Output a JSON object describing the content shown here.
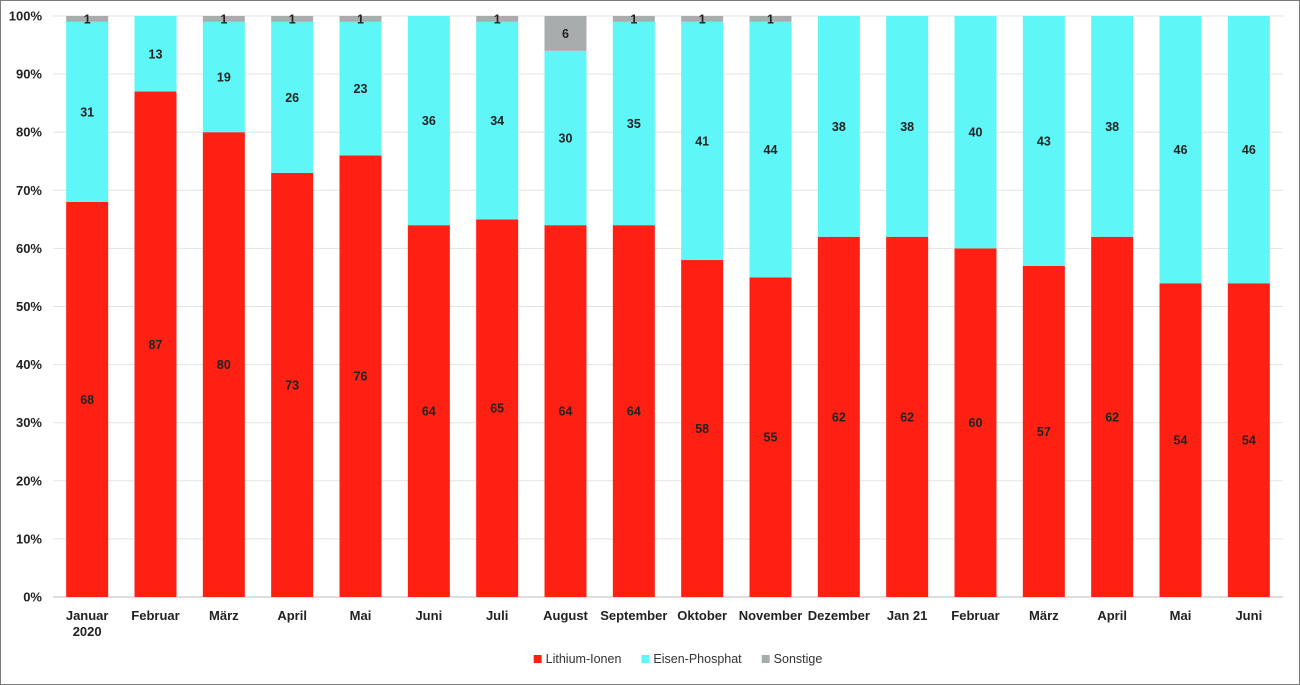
{
  "chart_data": {
    "type": "bar",
    "stacked": true,
    "percent": true,
    "categories": [
      [
        "Januar",
        "2020"
      ],
      [
        "Februar"
      ],
      [
        "März"
      ],
      [
        "April"
      ],
      [
        "Mai"
      ],
      [
        "Juni"
      ],
      [
        "Juli"
      ],
      [
        "August"
      ],
      [
        "September"
      ],
      [
        "Oktober"
      ],
      [
        "November"
      ],
      [
        "Dezember"
      ],
      [
        "Jan 21"
      ],
      [
        "Februar"
      ],
      [
        "März"
      ],
      [
        "April"
      ],
      [
        "Mai"
      ],
      [
        "Juni"
      ]
    ],
    "series": [
      {
        "name": "Lithium-Ionen",
        "color": "#ff2014",
        "values": [
          68,
          87,
          80,
          73,
          76,
          64,
          65,
          64,
          64,
          58,
          55,
          62,
          62,
          60,
          57,
          62,
          54,
          54
        ]
      },
      {
        "name": "Eisen-Phosphat",
        "color": "#5ff6f8",
        "values": [
          31,
          13,
          19,
          26,
          23,
          36,
          34,
          30,
          35,
          41,
          44,
          38,
          38,
          40,
          43,
          38,
          46,
          46
        ]
      },
      {
        "name": "Sonstige",
        "color": "#a9acad",
        "values": [
          1,
          0,
          1,
          1,
          1,
          0,
          1,
          6,
          1,
          1,
          1,
          0,
          0,
          0,
          0,
          0,
          0,
          0
        ]
      }
    ],
    "yticks": [
      "0%",
      "10%",
      "20%",
      "30%",
      "40%",
      "50%",
      "60%",
      "70%",
      "80%",
      "90%",
      "100%"
    ],
    "ylim": [
      0,
      100
    ],
    "grid": true,
    "legend_position": "bottom"
  }
}
